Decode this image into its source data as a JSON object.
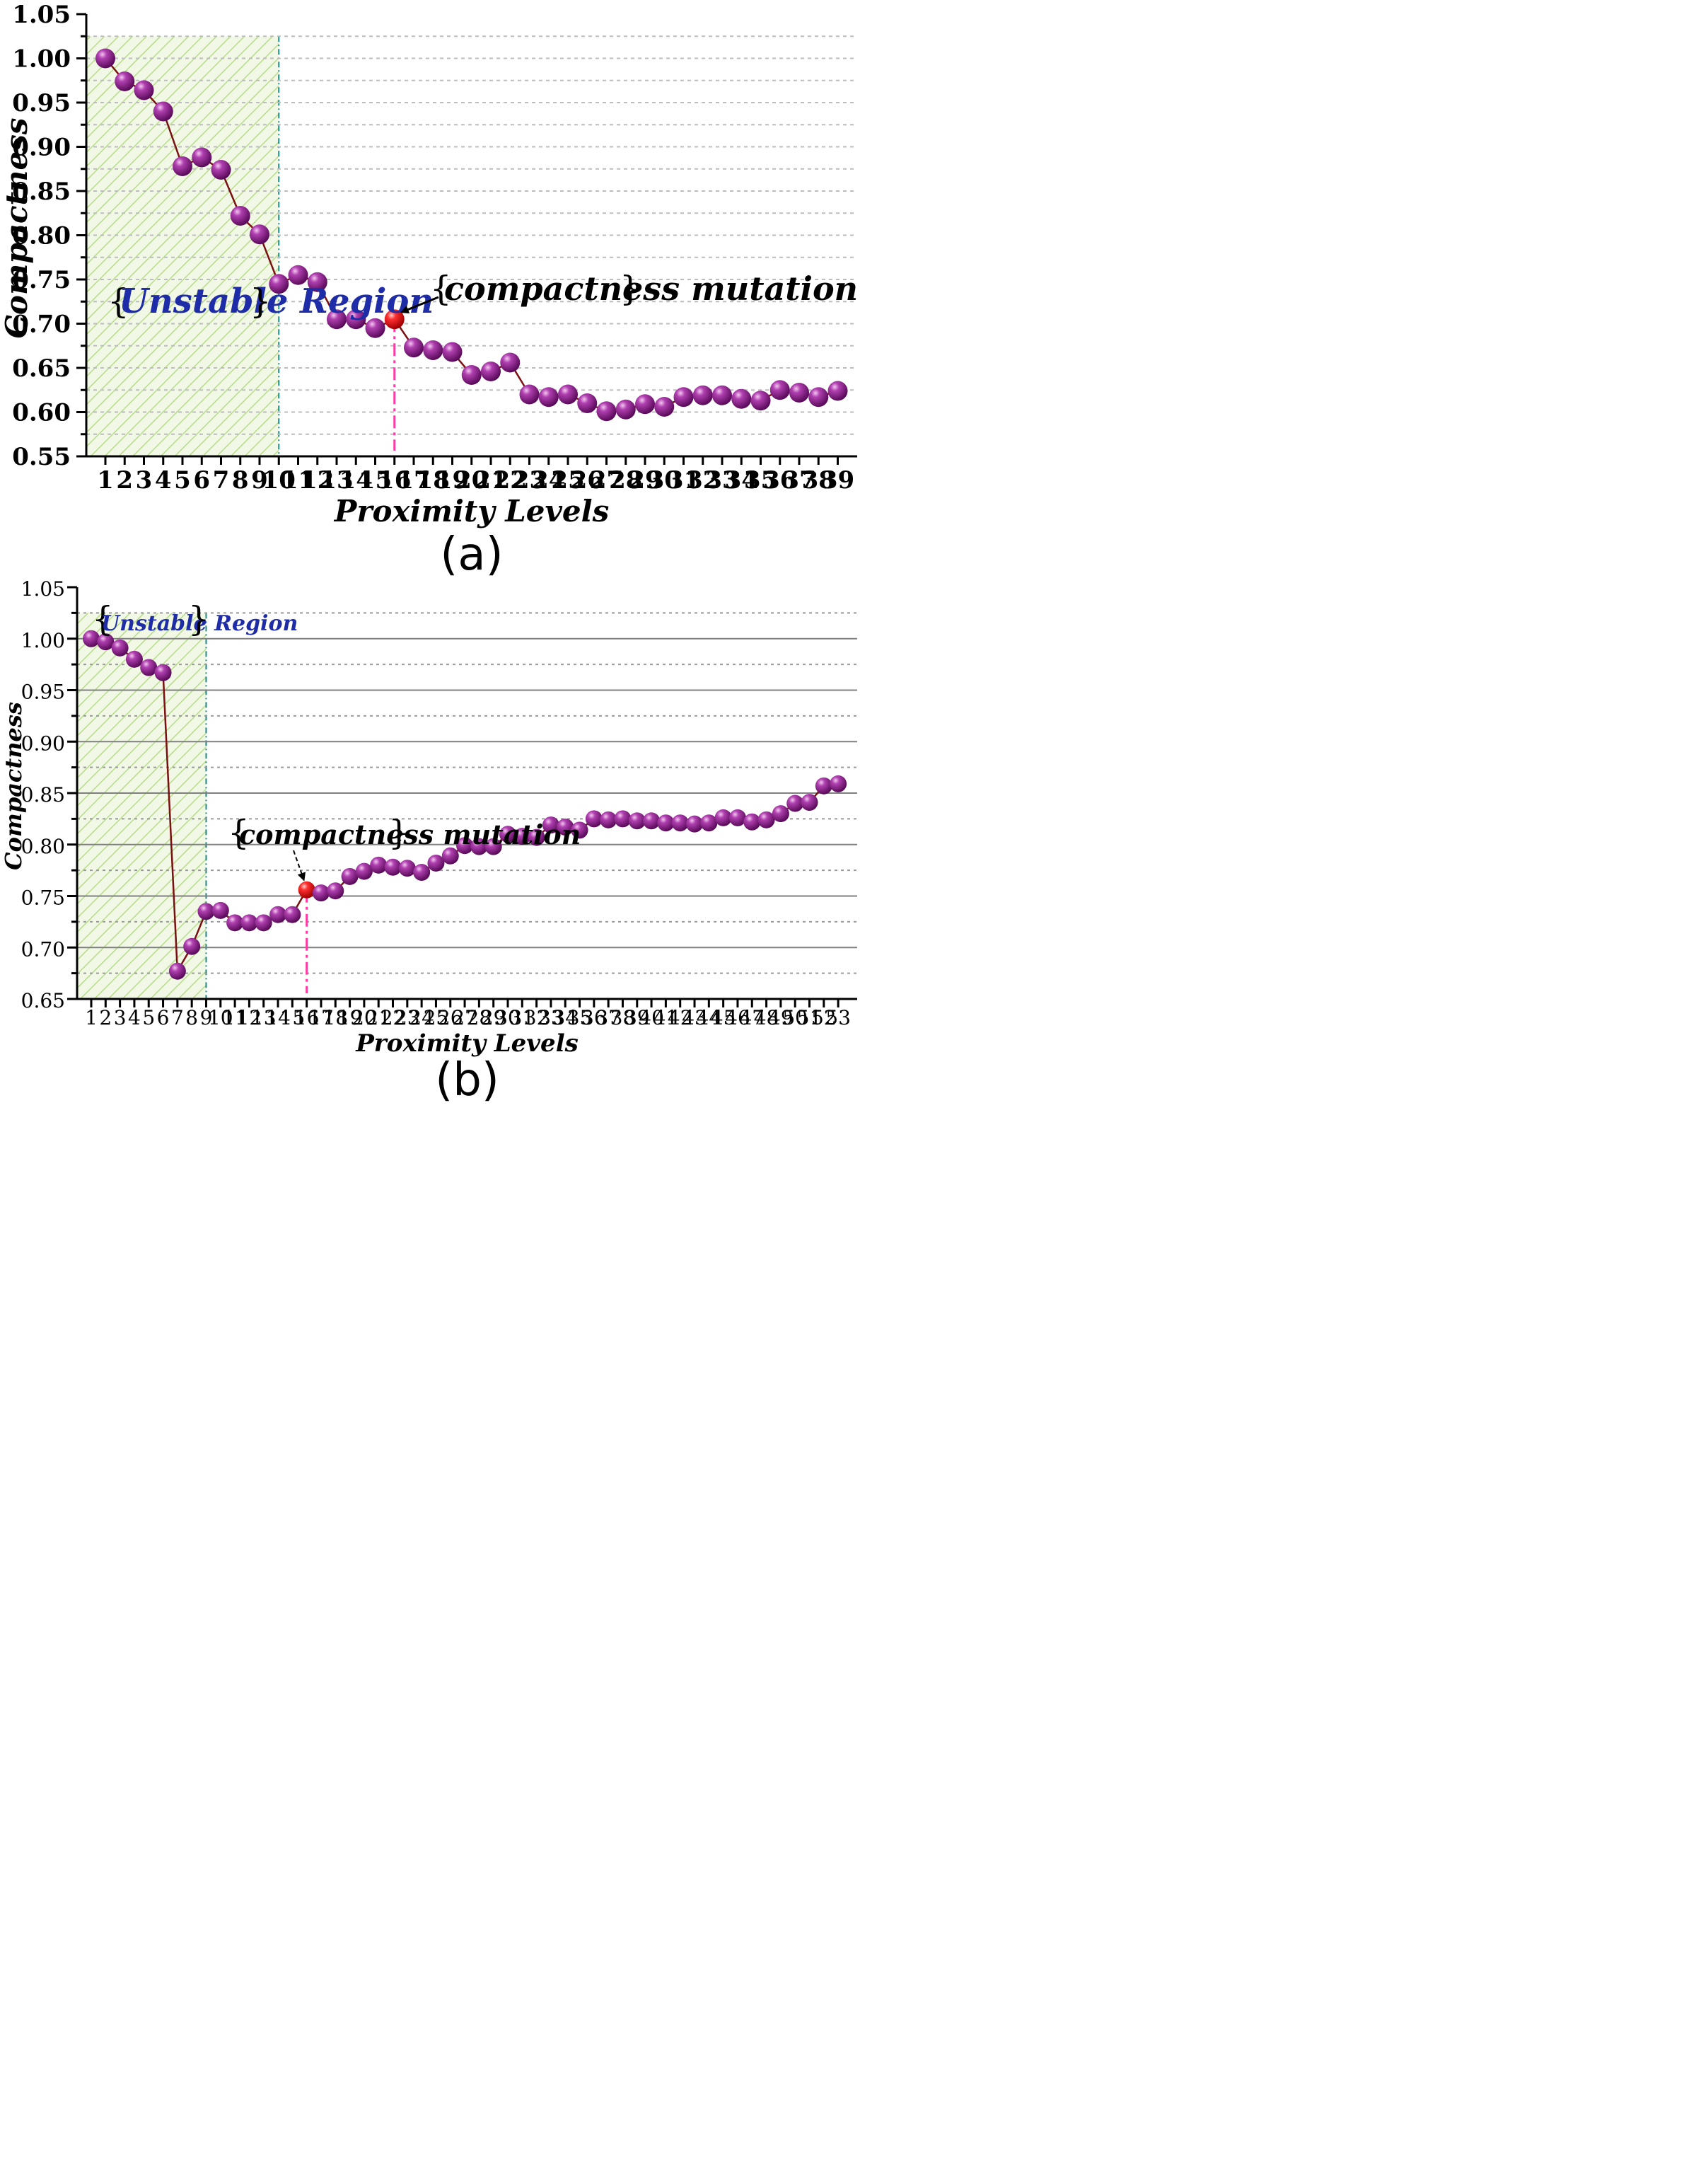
{
  "chart_data": [
    {
      "id": "a",
      "type": "line",
      "panel_label": "(a)",
      "xlabel": "Proximity Levels",
      "ylabel": "Compactness",
      "ylim": [
        0.55,
        1.05
      ],
      "yticks": [
        "0.55",
        "0.60",
        "0.65",
        "0.70",
        "0.75",
        "0.80",
        "0.85",
        "0.90",
        "0.95",
        "1.00",
        "1.05"
      ],
      "x": [
        1,
        2,
        3,
        4,
        5,
        6,
        7,
        8,
        9,
        10,
        11,
        12,
        13,
        14,
        15,
        16,
        17,
        18,
        19,
        20,
        21,
        22,
        23,
        24,
        25,
        26,
        27,
        28,
        29,
        30,
        31,
        32,
        33,
        34,
        35,
        36,
        37,
        38,
        39
      ],
      "values": [
        1.0,
        0.974,
        0.964,
        0.94,
        0.878,
        0.888,
        0.874,
        0.822,
        0.801,
        0.745,
        0.755,
        0.747,
        0.705,
        0.705,
        0.695,
        0.705,
        0.673,
        0.67,
        0.668,
        0.642,
        0.646,
        0.656,
        0.62,
        0.617,
        0.62,
        0.61,
        0.601,
        0.603,
        0.609,
        0.606,
        0.617,
        0.619,
        0.619,
        0.615,
        0.613,
        0.625,
        0.622,
        0.617,
        0.624
      ],
      "unstable_region": {
        "from": 0,
        "to": 10,
        "label": "Unstable Region"
      },
      "mutation": {
        "x": 16,
        "label": "compactness mutation"
      },
      "grid": true
    },
    {
      "id": "b",
      "type": "line",
      "panel_label": "(b)",
      "xlabel": "Proximity Levels",
      "ylabel": "Compactness",
      "ylim": [
        0.65,
        1.05
      ],
      "yticks": [
        "0.65",
        "0.70",
        "0.75",
        "0.80",
        "0.85",
        "0.90",
        "0.95",
        "1.00",
        "1.05"
      ],
      "x": [
        1,
        2,
        3,
        4,
        5,
        6,
        7,
        8,
        9,
        10,
        11,
        12,
        13,
        14,
        15,
        16,
        17,
        18,
        19,
        20,
        21,
        22,
        23,
        24,
        25,
        26,
        27,
        28,
        29,
        30,
        31,
        32,
        33,
        34,
        35,
        36,
        37,
        38,
        39,
        40,
        41,
        42,
        43,
        44,
        45,
        46,
        47,
        48,
        49,
        50,
        51,
        52,
        53
      ],
      "values": [
        1.0,
        0.997,
        0.991,
        0.98,
        0.972,
        0.967,
        0.677,
        0.701,
        0.735,
        0.736,
        0.724,
        0.724,
        0.724,
        0.732,
        0.732,
        0.756,
        0.753,
        0.755,
        0.769,
        0.774,
        0.78,
        0.778,
        0.777,
        0.773,
        0.782,
        0.789,
        0.799,
        0.798,
        0.798,
        0.81,
        0.808,
        0.807,
        0.819,
        0.817,
        0.814,
        0.825,
        0.824,
        0.825,
        0.823,
        0.823,
        0.821,
        0.821,
        0.82,
        0.821,
        0.826,
        0.826,
        0.822,
        0.824,
        0.83,
        0.84,
        0.841,
        0.857,
        0.859
      ],
      "unstable_region": {
        "from": 0,
        "to": 9,
        "label": "Unstable Region"
      },
      "mutation": {
        "x": 16,
        "label": "compactness mutation"
      },
      "grid": true
    }
  ],
  "colors": {
    "marker": "#8a1c8a",
    "marker_highlight": "#ff2020",
    "line": "#7a1010",
    "region_fill": "#f1f8e6",
    "region_hatch": "#b8dc8a",
    "region_boundary": "#1a8a8a",
    "mutation_line": "#ff3aa0",
    "region_label": "#1f2ca8"
  }
}
